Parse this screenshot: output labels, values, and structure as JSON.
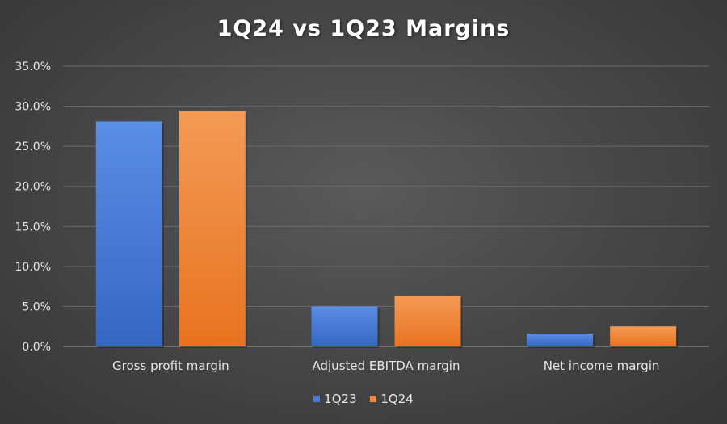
{
  "chart_data": {
    "type": "bar",
    "title": "1Q24 vs 1Q23 Margins",
    "categories": [
      "Gross profit margin",
      "Adjusted EBITDA margin",
      "Net income margin"
    ],
    "series": [
      {
        "name": "1Q23",
        "values": [
          28.1,
          5.0,
          1.6
        ],
        "color": "#4a7ad6"
      },
      {
        "name": "1Q24",
        "values": [
          29.4,
          6.3,
          2.5
        ],
        "color": "#f08a3c"
      }
    ],
    "ylim": [
      0,
      35
    ],
    "yticks": [
      "0.0%",
      "5.0%",
      "10.0%",
      "15.0%",
      "20.0%",
      "25.0%",
      "30.0%",
      "35.0%"
    ],
    "xlabel": "",
    "ylabel": "",
    "grid": true,
    "legend_position": "bottom"
  }
}
